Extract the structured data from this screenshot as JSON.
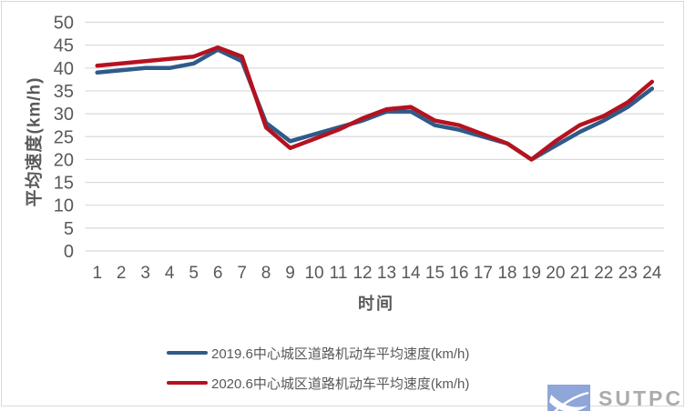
{
  "chart_data": {
    "type": "line",
    "x": [
      1,
      2,
      3,
      4,
      5,
      6,
      7,
      8,
      9,
      10,
      11,
      12,
      13,
      14,
      15,
      16,
      17,
      18,
      19,
      20,
      21,
      22,
      23,
      24
    ],
    "xlabel": "时间",
    "ylabel": "平均速度(km/h)",
    "ylim": [
      0,
      50
    ],
    "ytick_step": 5,
    "grid": true,
    "legend_position": "bottom",
    "series": [
      {
        "name": "2019.6中心城区道路机动车平均速度(km/h)",
        "color": "#2E5B8A",
        "values": [
          39,
          39.5,
          40,
          40,
          41,
          44,
          41.5,
          28,
          24,
          25.5,
          27,
          28.5,
          30.5,
          30.5,
          27.5,
          26.5,
          25,
          23.5,
          20,
          23,
          26,
          28.5,
          31.5,
          35.5
        ]
      },
      {
        "name": "2020.6中心城区道路机动车平均速度(km/h)",
        "color": "#B5121F",
        "values": [
          40.5,
          41,
          41.5,
          42,
          42.5,
          44.5,
          42.5,
          27,
          22.5,
          24.5,
          26.5,
          29,
          31,
          31.5,
          28.5,
          27.5,
          25.5,
          23.5,
          20,
          24,
          27.5,
          29.5,
          32.5,
          37
        ]
      }
    ]
  },
  "colors": {
    "grid": "#D9D9D9",
    "axis_text": "#595959",
    "frame": "#D9D9D9",
    "logo_bg": "#8EA6D8",
    "logo_text": "#ABABAB"
  },
  "logo": {
    "text": "SUTPC"
  }
}
